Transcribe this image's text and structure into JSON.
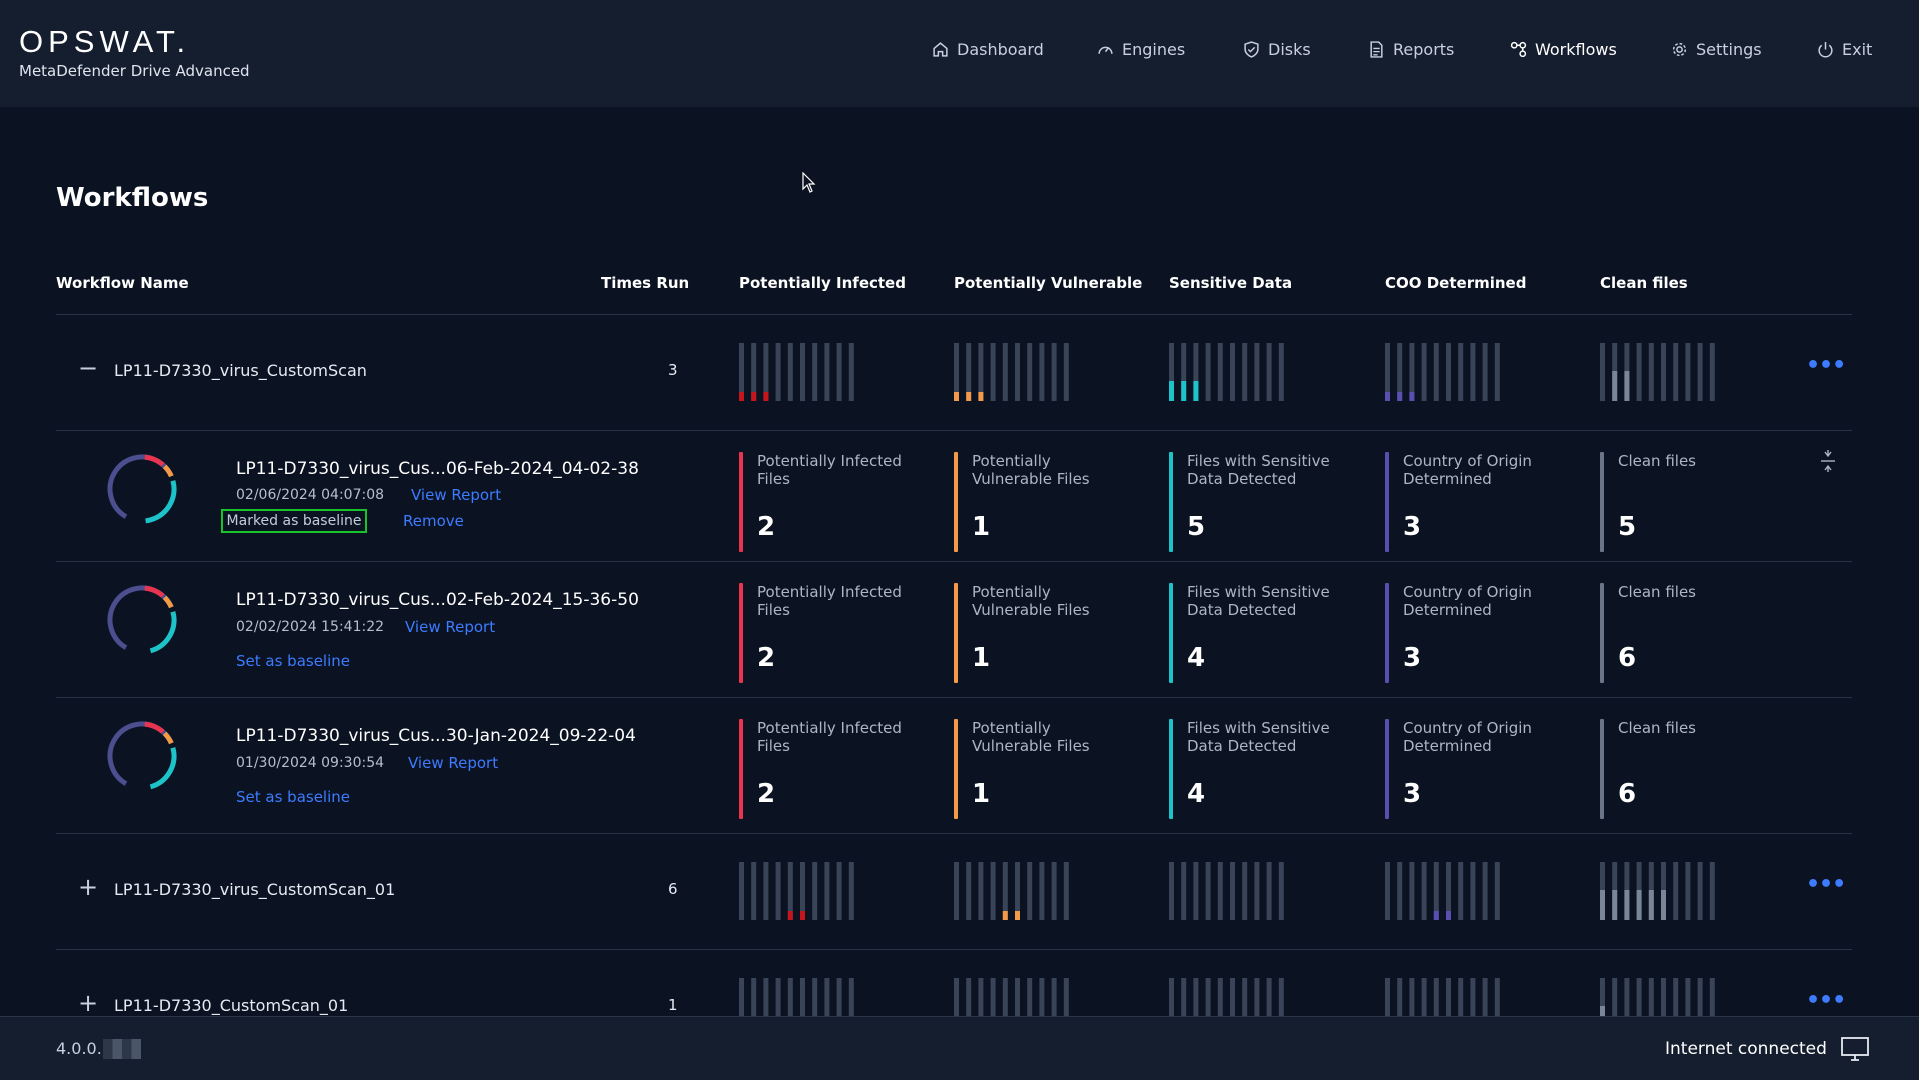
{
  "header": {
    "logo": "OPSWAT.",
    "product": "MetaDefender Drive Advanced",
    "nav": [
      {
        "label": "Dashboard",
        "icon": "home-icon"
      },
      {
        "label": "Engines",
        "icon": "gauge-icon"
      },
      {
        "label": "Disks",
        "icon": "shield-check-icon"
      },
      {
        "label": "Reports",
        "icon": "document-icon"
      },
      {
        "label": "Workflows",
        "icon": "workflow-icon",
        "active": true
      },
      {
        "label": "Settings",
        "icon": "gear-icon"
      },
      {
        "label": "Exit",
        "icon": "power-icon"
      }
    ]
  },
  "page": {
    "title": "Workflows"
  },
  "table": {
    "columns": [
      "Workflow Name",
      "Times Run",
      "Potentially Infected",
      "Potentially Vulnerable",
      "Sensitive Data",
      "COO Determined",
      "Clean files"
    ],
    "groups": [
      {
        "toggle": "−",
        "name": "LP11-D7330_virus_CustomScan",
        "times_run": "3",
        "expanded": true,
        "sparks": {
          "infected": [
            1,
            1,
            1,
            0,
            0,
            0,
            0,
            0,
            0,
            0
          ],
          "vulnerable": [
            1,
            1,
            1,
            0,
            0,
            0,
            0,
            0,
            0,
            0
          ],
          "sensitive": [
            1,
            1,
            1,
            0,
            0,
            0,
            0,
            0,
            0,
            0
          ],
          "coo": [
            1,
            1,
            1,
            0,
            0,
            0,
            0,
            0,
            0,
            0
          ],
          "clean": [
            0,
            1,
            1,
            0,
            0,
            0,
            0,
            0,
            0,
            0
          ]
        }
      },
      {
        "toggle": "+",
        "name": "LP11-D7330_virus_CustomScan_01",
        "times_run": "6",
        "expanded": false,
        "sparks": {
          "infected": [
            0,
            0,
            0,
            0,
            1,
            1,
            0,
            0,
            0,
            0
          ],
          "vulnerable": [
            0,
            0,
            0,
            0,
            1,
            1,
            0,
            0,
            0,
            0
          ],
          "sensitive": [
            0,
            0,
            0,
            0,
            0,
            0,
            0,
            0,
            0,
            0
          ],
          "coo": [
            0,
            0,
            0,
            0,
            1,
            1,
            0,
            0,
            0,
            0
          ],
          "clean": [
            1,
            1,
            1,
            1,
            1,
            1,
            0,
            0,
            0,
            0
          ]
        }
      },
      {
        "toggle": "+",
        "name": "LP11-D7330_CustomScan_01",
        "times_run": "1",
        "expanded": false,
        "sparks": {
          "infected": [
            0,
            0,
            0,
            0,
            0,
            0,
            0,
            0,
            0,
            0
          ],
          "vulnerable": [
            0,
            0,
            0,
            0,
            0,
            0,
            0,
            0,
            0,
            0
          ],
          "sensitive": [
            0,
            0,
            0,
            0,
            0,
            0,
            0,
            0,
            0,
            0
          ],
          "coo": [
            0,
            0,
            0,
            0,
            0,
            0,
            0,
            0,
            0,
            0
          ],
          "clean": [
            1,
            0,
            0,
            0,
            0,
            0,
            0,
            0,
            0,
            0
          ]
        }
      }
    ],
    "runs": [
      {
        "name": "LP11-D7330_virus_Cus...06-Feb-2024_04-02-38",
        "date": "02/06/2024 04:07:08",
        "view_report": "View Report",
        "baseline_tag": "Marked as baseline",
        "action": "Remove",
        "metrics": [
          {
            "label": "Potentially Infected Files",
            "value": "2"
          },
          {
            "label": "Potentially Vulnerable Files",
            "value": "1"
          },
          {
            "label": "Files with Sensitive Data Detected",
            "value": "5"
          },
          {
            "label": "Country of Origin Determined",
            "value": "3"
          },
          {
            "label": "Clean files",
            "value": "5"
          }
        ]
      },
      {
        "name": "LP11-D7330_virus_Cus...02-Feb-2024_15-36-50",
        "date": "02/02/2024 15:41:22",
        "view_report": "View Report",
        "action": "Set as baseline",
        "metrics": [
          {
            "label": "Potentially Infected Files",
            "value": "2"
          },
          {
            "label": "Potentially Vulnerable Files",
            "value": "1"
          },
          {
            "label": "Files with Sensitive Data Detected",
            "value": "4"
          },
          {
            "label": "Country of Origin Determined",
            "value": "3"
          },
          {
            "label": "Clean files",
            "value": "6"
          }
        ]
      },
      {
        "name": "LP11-D7330_virus_Cus...30-Jan-2024_09-22-04",
        "date": "01/30/2024 09:30:54",
        "view_report": "View Report",
        "action": "Set as baseline",
        "metrics": [
          {
            "label": "Potentially Infected Files",
            "value": "2"
          },
          {
            "label": "Potentially Vulnerable Files",
            "value": "1"
          },
          {
            "label": "Files with Sensitive Data Detected",
            "value": "4"
          },
          {
            "label": "Country of Origin Determined",
            "value": "3"
          },
          {
            "label": "Clean files",
            "value": "6"
          }
        ]
      }
    ]
  },
  "colors": {
    "infected": "#e8344e",
    "infected_spark": "#c4161c",
    "vulnerable": "#f29a4a",
    "sensitive": "#1ec2c9",
    "coo": "#5a4fb0",
    "clean": "#6b7588",
    "spark_bg": "#3a4458",
    "link": "#3d7bff"
  },
  "footer": {
    "version": "4.0.0.",
    "status": "Internet connected"
  }
}
